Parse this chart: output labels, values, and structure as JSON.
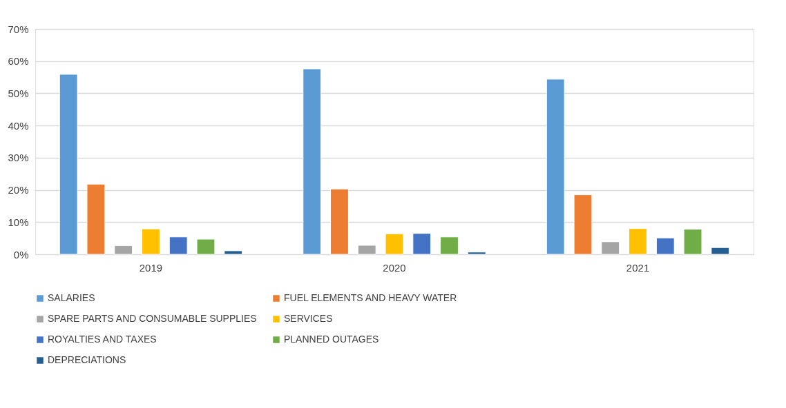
{
  "chart_data": {
    "type": "bar",
    "categories": [
      "2019",
      "2020",
      "2021"
    ],
    "series": [
      {
        "name": "SALARIES",
        "color": "#5b9bd5",
        "values": [
          55.9,
          57.6,
          54.4
        ]
      },
      {
        "name": "FUEL ELEMENTS AND HEAVY WATER",
        "color": "#ed7d31",
        "values": [
          21.8,
          20.3,
          18.5
        ]
      },
      {
        "name": "SPARE PARTS AND CONSUMABLE SUPPLIES",
        "color": "#a5a5a5",
        "values": [
          2.7,
          2.8,
          3.9
        ]
      },
      {
        "name": "SERVICES",
        "color": "#ffc000",
        "values": [
          7.9,
          6.4,
          8.0
        ]
      },
      {
        "name": "ROYALTIES AND TAXES",
        "color": "#4472c4",
        "values": [
          5.4,
          6.5,
          5.1
        ]
      },
      {
        "name": "PLANNED OUTAGES",
        "color": "#70ad47",
        "values": [
          4.7,
          5.4,
          7.8
        ]
      },
      {
        "name": "DEPRECIATIONS",
        "color": "#255e91",
        "values": [
          1.1,
          0.7,
          2.1
        ]
      }
    ],
    "ylim": [
      0,
      70
    ],
    "yticks": [
      {
        "value": 0,
        "label": "0%"
      },
      {
        "value": 10,
        "label": "10%"
      },
      {
        "value": 20,
        "label": "20%"
      },
      {
        "value": 30,
        "label": "30%"
      },
      {
        "value": 40,
        "label": "40%"
      },
      {
        "value": 50,
        "label": "50%"
      },
      {
        "value": 60,
        "label": "60%"
      },
      {
        "value": 70,
        "label": "70%"
      }
    ],
    "grid": "y",
    "legend": "bottom"
  }
}
